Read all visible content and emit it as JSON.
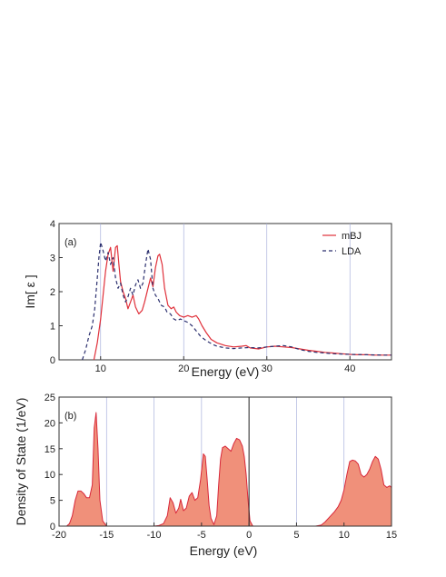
{
  "colors": {
    "mbj": "#e0303a",
    "lda": "#2b2f6e",
    "dos_fill": "#f0907a",
    "dos_line": "#d8283a",
    "grid": "#aab2dd"
  },
  "chart_data": [
    {
      "type": "line",
      "panel_label": "(a)",
      "xlabel": "Energy (eV)",
      "ylabel": "Im[ ε ]",
      "xlim": [
        5,
        45
      ],
      "ylim": [
        0,
        4
      ],
      "xticks": [
        "10",
        "20",
        "30",
        "40"
      ],
      "yticks": [
        "0",
        "1",
        "2",
        "3",
        "4"
      ],
      "grid": "vertical",
      "legend_placement": "top-right",
      "series": [
        {
          "name": "mBJ",
          "style": "solid",
          "points": [
            [
              9.2,
              0
            ],
            [
              9.6,
              0.5
            ],
            [
              10.0,
              1.2
            ],
            [
              10.3,
              1.9
            ],
            [
              10.6,
              2.6
            ],
            [
              10.9,
              3.1
            ],
            [
              11.2,
              3.3
            ],
            [
              11.5,
              2.6
            ],
            [
              11.8,
              3.3
            ],
            [
              12.0,
              3.35
            ],
            [
              12.2,
              2.8
            ],
            [
              12.4,
              2.3
            ],
            [
              12.7,
              2.0
            ],
            [
              13.0,
              1.8
            ],
            [
              13.3,
              1.5
            ],
            [
              13.6,
              1.7
            ],
            [
              13.9,
              1.9
            ],
            [
              14.2,
              1.55
            ],
            [
              14.6,
              1.35
            ],
            [
              15.0,
              1.45
            ],
            [
              15.3,
              1.7
            ],
            [
              15.7,
              2.1
            ],
            [
              16.0,
              2.4
            ],
            [
              16.3,
              2.15
            ],
            [
              16.6,
              2.7
            ],
            [
              16.9,
              3.05
            ],
            [
              17.1,
              3.1
            ],
            [
              17.4,
              2.8
            ],
            [
              17.7,
              2.1
            ],
            [
              18.1,
              1.6
            ],
            [
              18.5,
              1.5
            ],
            [
              18.8,
              1.55
            ],
            [
              19.1,
              1.4
            ],
            [
              19.5,
              1.3
            ],
            [
              20.0,
              1.25
            ],
            [
              20.5,
              1.3
            ],
            [
              21.0,
              1.25
            ],
            [
              21.5,
              1.3
            ],
            [
              21.8,
              1.2
            ],
            [
              22.2,
              1.0
            ],
            [
              22.7,
              0.8
            ],
            [
              23.3,
              0.6
            ],
            [
              24.0,
              0.5
            ],
            [
              25.0,
              0.42
            ],
            [
              26.0,
              0.38
            ],
            [
              27.0,
              0.4
            ],
            [
              27.5,
              0.42
            ],
            [
              28.0,
              0.35
            ],
            [
              29.0,
              0.32
            ],
            [
              30.0,
              0.38
            ],
            [
              31.0,
              0.4
            ],
            [
              32.0,
              0.38
            ],
            [
              33.0,
              0.36
            ],
            [
              34.0,
              0.32
            ],
            [
              35.0,
              0.28
            ],
            [
              36.0,
              0.25
            ],
            [
              37.0,
              0.22
            ],
            [
              38.0,
              0.2
            ],
            [
              39.0,
              0.18
            ],
            [
              40.0,
              0.16
            ],
            [
              41.0,
              0.15
            ],
            [
              42.0,
              0.15
            ],
            [
              43.0,
              0.14
            ],
            [
              44.0,
              0.14
            ],
            [
              45.0,
              0.14
            ]
          ]
        },
        {
          "name": "LDA",
          "style": "dashed",
          "points": [
            [
              7.8,
              0
            ],
            [
              8.2,
              0.3
            ],
            [
              8.6,
              0.7
            ],
            [
              9.0,
              1.0
            ],
            [
              9.3,
              1.5
            ],
            [
              9.6,
              2.4
            ],
            [
              9.8,
              3.0
            ],
            [
              10.0,
              3.45
            ],
            [
              10.3,
              3.2
            ],
            [
              10.6,
              2.9
            ],
            [
              10.9,
              3.15
            ],
            [
              11.2,
              2.8
            ],
            [
              11.5,
              3.0
            ],
            [
              11.8,
              2.4
            ],
            [
              12.1,
              2.1
            ],
            [
              12.4,
              2.25
            ],
            [
              12.7,
              1.9
            ],
            [
              13.0,
              1.7
            ],
            [
              13.3,
              1.85
            ],
            [
              13.6,
              2.1
            ],
            [
              13.9,
              1.9
            ],
            [
              14.2,
              2.2
            ],
            [
              14.5,
              2.35
            ],
            [
              14.8,
              2.1
            ],
            [
              15.1,
              2.25
            ],
            [
              15.4,
              2.8
            ],
            [
              15.7,
              3.25
            ],
            [
              16.0,
              2.95
            ],
            [
              16.3,
              2.1
            ],
            [
              16.6,
              1.9
            ],
            [
              16.9,
              1.8
            ],
            [
              17.3,
              1.6
            ],
            [
              17.7,
              1.55
            ],
            [
              18.0,
              1.4
            ],
            [
              18.4,
              1.35
            ],
            [
              18.8,
              1.2
            ],
            [
              19.2,
              1.15
            ],
            [
              19.6,
              1.2
            ],
            [
              20.0,
              1.15
            ],
            [
              20.5,
              1.1
            ],
            [
              21.0,
              1.0
            ],
            [
              21.5,
              0.85
            ],
            [
              22.0,
              0.7
            ],
            [
              22.5,
              0.6
            ],
            [
              23.0,
              0.52
            ],
            [
              23.5,
              0.45
            ],
            [
              24.0,
              0.4
            ],
            [
              25.0,
              0.35
            ],
            [
              26.0,
              0.33
            ],
            [
              27.0,
              0.35
            ],
            [
              28.0,
              0.36
            ],
            [
              29.0,
              0.35
            ],
            [
              30.0,
              0.38
            ],
            [
              31.0,
              0.4
            ],
            [
              32.0,
              0.42
            ],
            [
              33.0,
              0.38
            ],
            [
              34.0,
              0.3
            ],
            [
              35.0,
              0.25
            ],
            [
              36.0,
              0.22
            ],
            [
              37.0,
              0.2
            ],
            [
              38.0,
              0.18
            ],
            [
              39.0,
              0.17
            ],
            [
              40.0,
              0.16
            ],
            [
              42.0,
              0.15
            ],
            [
              44.0,
              0.14
            ],
            [
              45.0,
              0.14
            ]
          ]
        }
      ]
    },
    {
      "type": "area",
      "panel_label": "(b)",
      "xlabel": "Energy (eV)",
      "ylabel": "Density of State (1/eV)",
      "xlim": [
        -20,
        15
      ],
      "ylim": [
        0,
        25
      ],
      "xticks": [
        "-20",
        "-15",
        "-10",
        "-5",
        "0",
        "5",
        "10",
        "15"
      ],
      "yticks": [
        "0",
        "5",
        "10",
        "15",
        "20",
        "25"
      ],
      "grid": "vertical",
      "fermi_level": 0,
      "points": [
        [
          -19.2,
          0
        ],
        [
          -18.9,
          0.5
        ],
        [
          -18.6,
          2
        ],
        [
          -18.3,
          5
        ],
        [
          -18.0,
          6.8
        ],
        [
          -17.7,
          6.8
        ],
        [
          -17.4,
          6.3
        ],
        [
          -17.1,
          5.5
        ],
        [
          -16.8,
          5.5
        ],
        [
          -16.5,
          8
        ],
        [
          -16.3,
          19
        ],
        [
          -16.1,
          22
        ],
        [
          -15.9,
          15
        ],
        [
          -15.7,
          5
        ],
        [
          -15.4,
          1
        ],
        [
          -15.0,
          0
        ],
        [
          -10.0,
          0
        ],
        [
          -9.5,
          0.1
        ],
        [
          -9.0,
          0.5
        ],
        [
          -8.6,
          2
        ],
        [
          -8.3,
          5.5
        ],
        [
          -8.0,
          4.5
        ],
        [
          -7.7,
          2.5
        ],
        [
          -7.4,
          3.5
        ],
        [
          -7.2,
          5.2
        ],
        [
          -6.9,
          3
        ],
        [
          -6.6,
          3.5
        ],
        [
          -6.3,
          5.8
        ],
        [
          -6.0,
          6.5
        ],
        [
          -5.7,
          5
        ],
        [
          -5.4,
          5.5
        ],
        [
          -5.1,
          9
        ],
        [
          -4.8,
          14
        ],
        [
          -4.6,
          13.5
        ],
        [
          -4.4,
          9
        ],
        [
          -4.2,
          4
        ],
        [
          -4.0,
          1.5
        ],
        [
          -3.7,
          0.3
        ],
        [
          -3.4,
          2
        ],
        [
          -3.2,
          8
        ],
        [
          -3.0,
          13
        ],
        [
          -2.8,
          15.2
        ],
        [
          -2.5,
          15.5
        ],
        [
          -2.2,
          15
        ],
        [
          -1.9,
          14.5
        ],
        [
          -1.6,
          16
        ],
        [
          -1.3,
          17
        ],
        [
          -1.0,
          16.7
        ],
        [
          -0.7,
          15.5
        ],
        [
          -0.5,
          13.5
        ],
        [
          -0.3,
          10
        ],
        [
          -0.1,
          5
        ],
        [
          0.1,
          1
        ],
        [
          0.4,
          0
        ],
        [
          7.0,
          0
        ],
        [
          7.6,
          0.2
        ],
        [
          8.0,
          0.8
        ],
        [
          8.5,
          1.8
        ],
        [
          9.0,
          2.8
        ],
        [
          9.4,
          3.8
        ],
        [
          9.7,
          5
        ],
        [
          10.0,
          7
        ],
        [
          10.3,
          10
        ],
        [
          10.6,
          12.5
        ],
        [
          10.9,
          12.8
        ],
        [
          11.2,
          12.6
        ],
        [
          11.5,
          12
        ],
        [
          11.8,
          10
        ],
        [
          12.1,
          9.5
        ],
        [
          12.4,
          10
        ],
        [
          12.7,
          11
        ],
        [
          13.0,
          12.5
        ],
        [
          13.3,
          13.5
        ],
        [
          13.6,
          13
        ],
        [
          13.9,
          11
        ],
        [
          14.2,
          8
        ],
        [
          14.5,
          7.5
        ],
        [
          14.8,
          7.8
        ],
        [
          15.0,
          7.5
        ]
      ]
    }
  ]
}
